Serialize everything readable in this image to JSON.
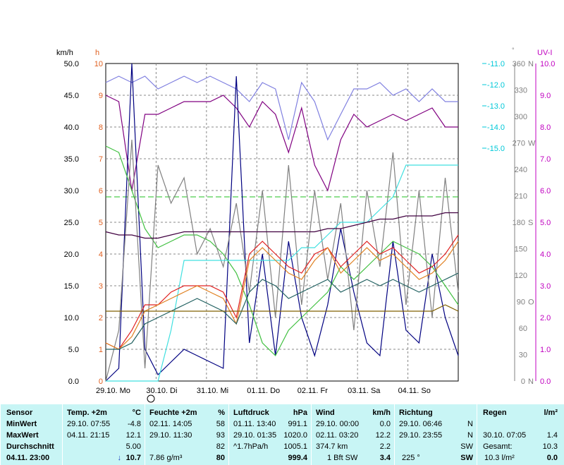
{
  "chart_data": {
    "type": "line",
    "x_ticks": [
      "29.10.",
      "Mo",
      "30.10.",
      "Di",
      "31.10.",
      "Mi",
      "01.11.",
      "Do",
      "02.11.",
      "Fr",
      "03.11.",
      "Sa",
      "04.11.",
      "So"
    ],
    "x_tick_labels": [
      "29.10.  Mo",
      "30.10.  Di",
      "31.10.  Mi",
      "01.11.  Do",
      "02.11.  Fr",
      "03.11.  Sa",
      "04.11.  So"
    ],
    "axes": {
      "kmh": {
        "unit": "km/h",
        "range": [
          0,
          50
        ],
        "ticks": [
          "0.0",
          "5.0",
          "10.0",
          "15.0",
          "20.0",
          "25.0",
          "30.0",
          "35.0",
          "40.0",
          "45.0",
          "50.0"
        ],
        "color": "#000000"
      },
      "hours": {
        "unit": "h",
        "range": [
          0,
          10
        ],
        "ticks": [
          "0",
          "1",
          "2",
          "3",
          "4",
          "5",
          "6",
          "7",
          "8",
          "9",
          "10"
        ],
        "color": "#e06020"
      },
      "temp": {
        "unit": "",
        "ticks": [
          "-15.0",
          "-14.0",
          "-13.0",
          "-12.0",
          "-11.0"
        ],
        "color": "#00c8d8"
      },
      "degrees": {
        "unit": "°",
        "range": [
          0,
          360
        ],
        "ticks": [
          "0",
          "30",
          "60",
          "90",
          "120",
          "150",
          "180",
          "210",
          "240",
          "270",
          "300",
          "330",
          "360"
        ],
        "dir_labels": {
          "0": "N",
          "90": "O",
          "180": "S",
          "270": "W",
          "360": "N"
        },
        "color": "#808080"
      },
      "uvi": {
        "unit": "UV-I",
        "range": [
          0,
          10
        ],
        "ticks": [
          "0.0",
          "1.0",
          "2.0",
          "3.0",
          "4.0",
          "5.0",
          "6.0",
          "7.0",
          "8.0",
          "9.0",
          "10.0"
        ],
        "color": "#c000c0"
      }
    },
    "series": [
      {
        "color": "#8080e0",
        "values": [
          47,
          48,
          47,
          48,
          46,
          47,
          48,
          47,
          48,
          47,
          46,
          44,
          47,
          46,
          38,
          47,
          44,
          38,
          42,
          46,
          46,
          47,
          45,
          46,
          44,
          46,
          44,
          44
        ]
      },
      {
        "color": "#800080",
        "values": [
          45,
          44,
          30,
          42,
          42,
          43,
          44,
          44,
          44,
          45,
          43,
          40,
          44,
          42,
          36,
          43,
          34,
          30,
          38,
          42,
          40,
          41,
          42,
          41,
          42,
          43,
          40,
          40
        ]
      },
      {
        "color": "#000080",
        "values": [
          0,
          2,
          50,
          5,
          1,
          3,
          5,
          4,
          3,
          2,
          48,
          6,
          20,
          4,
          22,
          10,
          4,
          12,
          24,
          14,
          6,
          4,
          22,
          8,
          6,
          20,
          10,
          4
        ]
      },
      {
        "color": "#40c040",
        "values": [
          37,
          36,
          30,
          24,
          21,
          22,
          23,
          23,
          22,
          20,
          17,
          12,
          6,
          4,
          8,
          10,
          12,
          14,
          18,
          16,
          18,
          20,
          22,
          21,
          20,
          18,
          15,
          12
        ]
      },
      {
        "color": "#808080",
        "values": [
          0,
          8,
          38,
          2,
          34,
          28,
          32,
          20,
          24,
          18,
          28,
          14,
          30,
          10,
          34,
          12,
          30,
          16,
          28,
          8,
          30,
          18,
          36,
          12,
          30,
          10,
          32,
          14
        ]
      },
      {
        "color": "#40e0e0",
        "values": [
          0,
          0,
          0,
          0,
          0,
          8,
          19,
          19,
          19,
          19,
          19,
          19,
          19,
          19,
          19,
          21,
          21,
          23,
          25,
          25,
          25,
          27,
          29,
          34,
          34,
          34,
          34,
          34
        ]
      },
      {
        "color": "#e02020",
        "values": [
          6,
          5,
          8,
          12,
          12,
          14,
          15,
          15,
          15,
          14,
          10,
          20,
          22,
          20,
          18,
          17,
          20,
          21,
          18,
          20,
          22,
          20,
          21,
          19,
          17,
          18,
          20,
          23
        ]
      },
      {
        "color": "#e08020",
        "values": [
          6,
          5,
          7,
          11,
          12,
          13,
          14,
          15,
          14,
          13,
          9,
          19,
          21,
          19,
          17,
          16,
          19,
          21,
          17,
          19,
          21,
          19,
          20,
          18,
          16,
          17,
          19,
          22
        ]
      },
      {
        "color": "#206060",
        "values": [
          5,
          5,
          6,
          9,
          10,
          11,
          12,
          13,
          12,
          11,
          9,
          14,
          16,
          15,
          13,
          14,
          15,
          16,
          14,
          15,
          16,
          15,
          16,
          15,
          14,
          15,
          16,
          17
        ]
      },
      {
        "color": "#806000",
        "values": [
          11,
          11,
          11,
          11,
          11,
          11,
          11,
          11,
          11,
          11,
          11,
          11,
          11,
          11,
          11,
          11,
          11,
          11,
          11,
          11,
          11,
          11,
          11,
          11,
          11,
          11,
          12,
          11
        ]
      },
      {
        "color": "#400040",
        "values": [
          23.5,
          23,
          23,
          22.5,
          22.5,
          23,
          23.5,
          23.5,
          23.5,
          23.5,
          23.5,
          23.5,
          23.5,
          23.5,
          23.5,
          23.5,
          23.5,
          24,
          24,
          24.5,
          25,
          25.5,
          25.5,
          26,
          26,
          26,
          26.5,
          26.5
        ]
      }
    ],
    "reference_line": {
      "color": "#20c020",
      "value": 29
    }
  },
  "table": {
    "headers": {
      "sensor": "Sensor",
      "temp": "Temp. +2m",
      "temp_unit": "°C",
      "hum": "Feuchte +2m",
      "hum_unit": "%",
      "press": "Luftdruck",
      "press_unit": "hPa",
      "wind": "Wind",
      "wind_unit": "km/h",
      "dir": "Richtung",
      "rain": "Regen",
      "rain_unit": "l/m²"
    },
    "min": {
      "label": "MinWert",
      "temp_t": "29.10.  07:55",
      "temp_v": "-4.8",
      "hum_t": "02.11.  14:05",
      "hum_v": "58",
      "press_t": "01.11.  13:40",
      "press_v": "991.1",
      "wind_t": "29.10.  00:00",
      "wind_v": "0.0",
      "dir_t": "29.10.  06:46",
      "dir_v": "N"
    },
    "max": {
      "label": "MaxWert",
      "temp_t": "04.11.  21:15",
      "temp_v": "12.1",
      "hum_t": "29.10.  11:30",
      "hum_v": "93",
      "press_t": "29.10.  01:35",
      "press_v": "1020.0",
      "wind_t": "02.11.  03:20",
      "wind_v": "12.2",
      "dir_t": "29.10.  23:55",
      "dir_v": "N",
      "rain_t": "30.10.  07:05",
      "rain_v": "1.4"
    },
    "avg": {
      "label": "Durchschnitt",
      "temp_v": "5.00",
      "hum_v": "82",
      "press_t": "^1.7hPa/h",
      "press_v": "1005.1",
      "wind_t": "374.7 km",
      "wind_v": "2.2",
      "dir_v": "SW",
      "rain_t": "Gesamt:",
      "rain_v": "10.3"
    },
    "now": {
      "label": "04.11.  23:00",
      "temp_v": "10.7",
      "hum_t": "7.86 g/m³",
      "hum_v": "80",
      "press_v": "999.4",
      "wind_t": "1 Bft SW",
      "wind_v": "3.4",
      "dir_t": "225 °",
      "dir_v": "SW",
      "rain_t": "10.3 l/m²",
      "rain_v": "0.0"
    }
  }
}
